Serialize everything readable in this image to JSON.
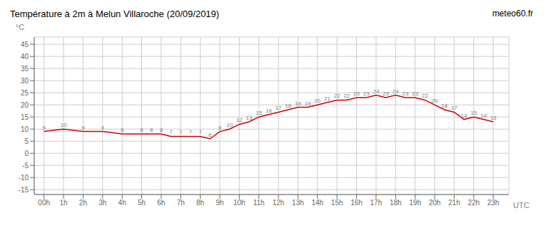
{
  "chart_data": {
    "type": "line",
    "title": "Température à 2m à Melun Villaroche (20/09/2019)",
    "xlabel": "UTC",
    "ylabel": "°C",
    "annotations": [
      "meteo60.fr"
    ],
    "x": [
      0,
      1,
      2,
      3,
      4,
      5,
      5.5,
      6,
      6.5,
      7,
      7.5,
      8,
      8.5,
      9,
      9.5,
      10,
      10.5,
      11,
      11.5,
      12,
      12.5,
      13,
      13.5,
      14,
      14.5,
      15,
      15.5,
      16,
      16.5,
      17,
      17.5,
      18,
      18.5,
      19,
      19.5,
      20,
      20.5,
      21,
      21.5,
      22,
      22.5,
      23
    ],
    "values": [
      9,
      10,
      9,
      9,
      8,
      8,
      8,
      8,
      7,
      7,
      7,
      7,
      6,
      9,
      10,
      12,
      13,
      15,
      16,
      17,
      18,
      19,
      19,
      20,
      21,
      22,
      22,
      23,
      23,
      24,
      23,
      24,
      23,
      23,
      22,
      20,
      18,
      17,
      14,
      15,
      14,
      13
    ],
    "color": "#cc0000",
    "xlim": [
      -0.5,
      23.8
    ],
    "xticks": [
      {
        "value": 0,
        "label": "00h"
      },
      {
        "value": 1,
        "label": "1h"
      },
      {
        "value": 2,
        "label": "2h"
      },
      {
        "value": 3,
        "label": "3h"
      },
      {
        "value": 4,
        "label": "4h"
      },
      {
        "value": 5,
        "label": "5h"
      },
      {
        "value": 6,
        "label": "6h"
      },
      {
        "value": 7,
        "label": "7h"
      },
      {
        "value": 8,
        "label": "8h"
      },
      {
        "value": 9,
        "label": "9h"
      },
      {
        "value": 10,
        "label": "10h"
      },
      {
        "value": 11,
        "label": "11h"
      },
      {
        "value": 12,
        "label": "12h"
      },
      {
        "value": 13,
        "label": "13h"
      },
      {
        "value": 14,
        "label": "14h"
      },
      {
        "value": 15,
        "label": "15h"
      },
      {
        "value": 16,
        "label": "16h"
      },
      {
        "value": 17,
        "label": "17h"
      },
      {
        "value": 18,
        "label": "18h"
      },
      {
        "value": 19,
        "label": "19h"
      },
      {
        "value": 20,
        "label": "20h"
      },
      {
        "value": 21,
        "label": "21h"
      },
      {
        "value": 22,
        "label": "22h"
      },
      {
        "value": 23,
        "label": "23h"
      }
    ],
    "ylim": [
      -17,
      48
    ],
    "yticks": [
      -15,
      -10,
      -5,
      0,
      5,
      10,
      15,
      20,
      25,
      30,
      35,
      40,
      45
    ],
    "grid": true,
    "data_labels": true
  }
}
